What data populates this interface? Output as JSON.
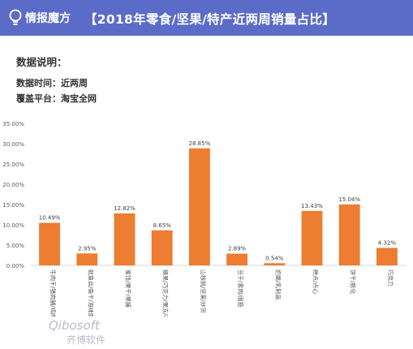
{
  "header": {
    "logo_text": "情报魔方",
    "title": "【2018年零食/坚果/特产近两周销量占比】"
  },
  "info": {
    "heading": "数据说明：",
    "rows": [
      "数据时间：近两周",
      "覆盖平台：淘宝全网"
    ]
  },
  "watermark": {
    "text": "Qibosoft",
    "subtext": "齐博软件"
  },
  "chart_data": {
    "type": "bar",
    "title": "",
    "xlabel": "",
    "ylabel": "",
    "ylim": [
      0,
      35
    ],
    "y_ticks": [
      "0.00%",
      "5.00%",
      "10.00%",
      "15.00%",
      "20.00%",
      "25.00%",
      "30.00%",
      "35.00%"
    ],
    "grid": false,
    "bar_color": "#ed7d31",
    "categories": [
      "牛肉干/猪肉脯/鸡肉脯",
      "鱿鱼丝/鱼干/海味即食",
      "蜜饯/果干/果脯",
      "糖果/巧克力/果冻/布丁",
      "山核桃/坚果/炒货",
      "豆干/素肉/面筋",
      "奶酪/乳制品",
      "糕点/点心",
      "饼干/膨化",
      "巧克力"
    ],
    "values": [
      10.49,
      2.95,
      12.82,
      8.65,
      28.85,
      2.89,
      0.54,
      13.43,
      15.04,
      4.32
    ],
    "data_labels": [
      "10.49%",
      "2.95%",
      "12.82%",
      "8.65%",
      "28.85%",
      "2.89%",
      "0.54%",
      "13.43%",
      "15.04%",
      "4.32%"
    ]
  }
}
